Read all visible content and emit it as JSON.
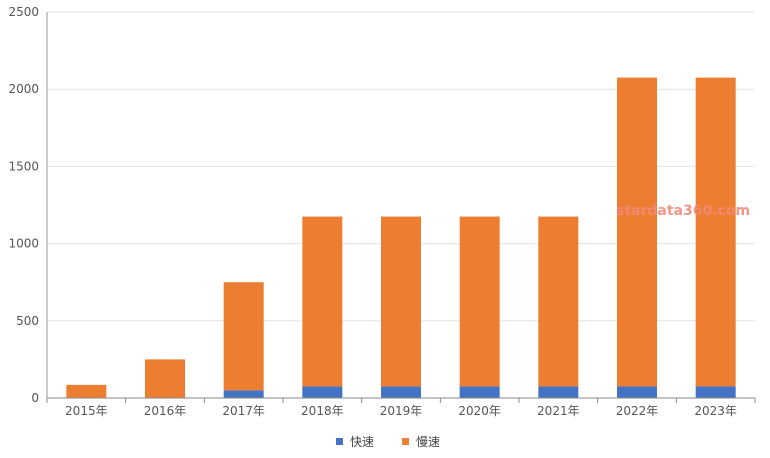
{
  "chart_data": {
    "type": "bar",
    "stacked": true,
    "categories": [
      "2015年",
      "2016年",
      "2017年",
      "2018年",
      "2019年",
      "2020年",
      "2021年",
      "2022年",
      "2023年"
    ],
    "series": [
      {
        "name": "快速",
        "color": "#4472c4",
        "values": [
          0,
          0,
          50,
          75,
          75,
          75,
          75,
          75,
          75
        ]
      },
      {
        "name": "慢速",
        "color": "#ed7d31",
        "values": [
          85,
          250,
          700,
          1100,
          1100,
          1100,
          1100,
          2000,
          2000
        ]
      }
    ],
    "ylim": [
      0,
      2500
    ],
    "yticks": [
      "0",
      "500",
      "1000",
      "1500",
      "2000",
      "2500"
    ],
    "grid": true,
    "legend_position": "bottom-center",
    "title": "",
    "xlabel": "",
    "ylabel": ""
  },
  "watermark": "stardata360.com"
}
